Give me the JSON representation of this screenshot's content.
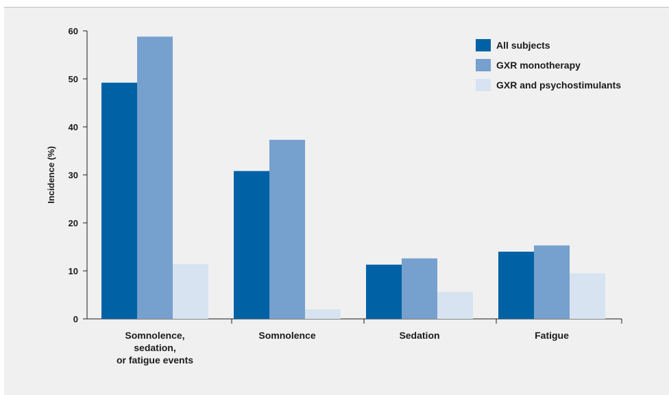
{
  "chart_data": {
    "type": "bar",
    "categories": [
      [
        "Somnolence,",
        "sedation,",
        "or fatigue events"
      ],
      [
        "Somnolence"
      ],
      [
        "Sedation"
      ],
      [
        "Fatigue"
      ]
    ],
    "series": [
      {
        "name": "All subjects",
        "color": "#0062a5",
        "values": [
          49.2,
          30.8,
          11.3,
          14.0
        ]
      },
      {
        "name": "GXR monotherapy",
        "color": "#76a0cd",
        "values": [
          58.8,
          37.3,
          12.6,
          15.3
        ]
      },
      {
        "name": "GXR and psychostimulants",
        "color": "#d7e3f0",
        "values": [
          11.4,
          2.0,
          5.6,
          9.5
        ]
      }
    ],
    "title": "",
    "xlabel": "",
    "ylabel": "Incidence (%)",
    "ylim": [
      0,
      60
    ],
    "yticks": [
      0,
      10,
      20,
      30,
      40,
      50,
      60
    ],
    "grid": false,
    "legend_position": "top-right"
  }
}
